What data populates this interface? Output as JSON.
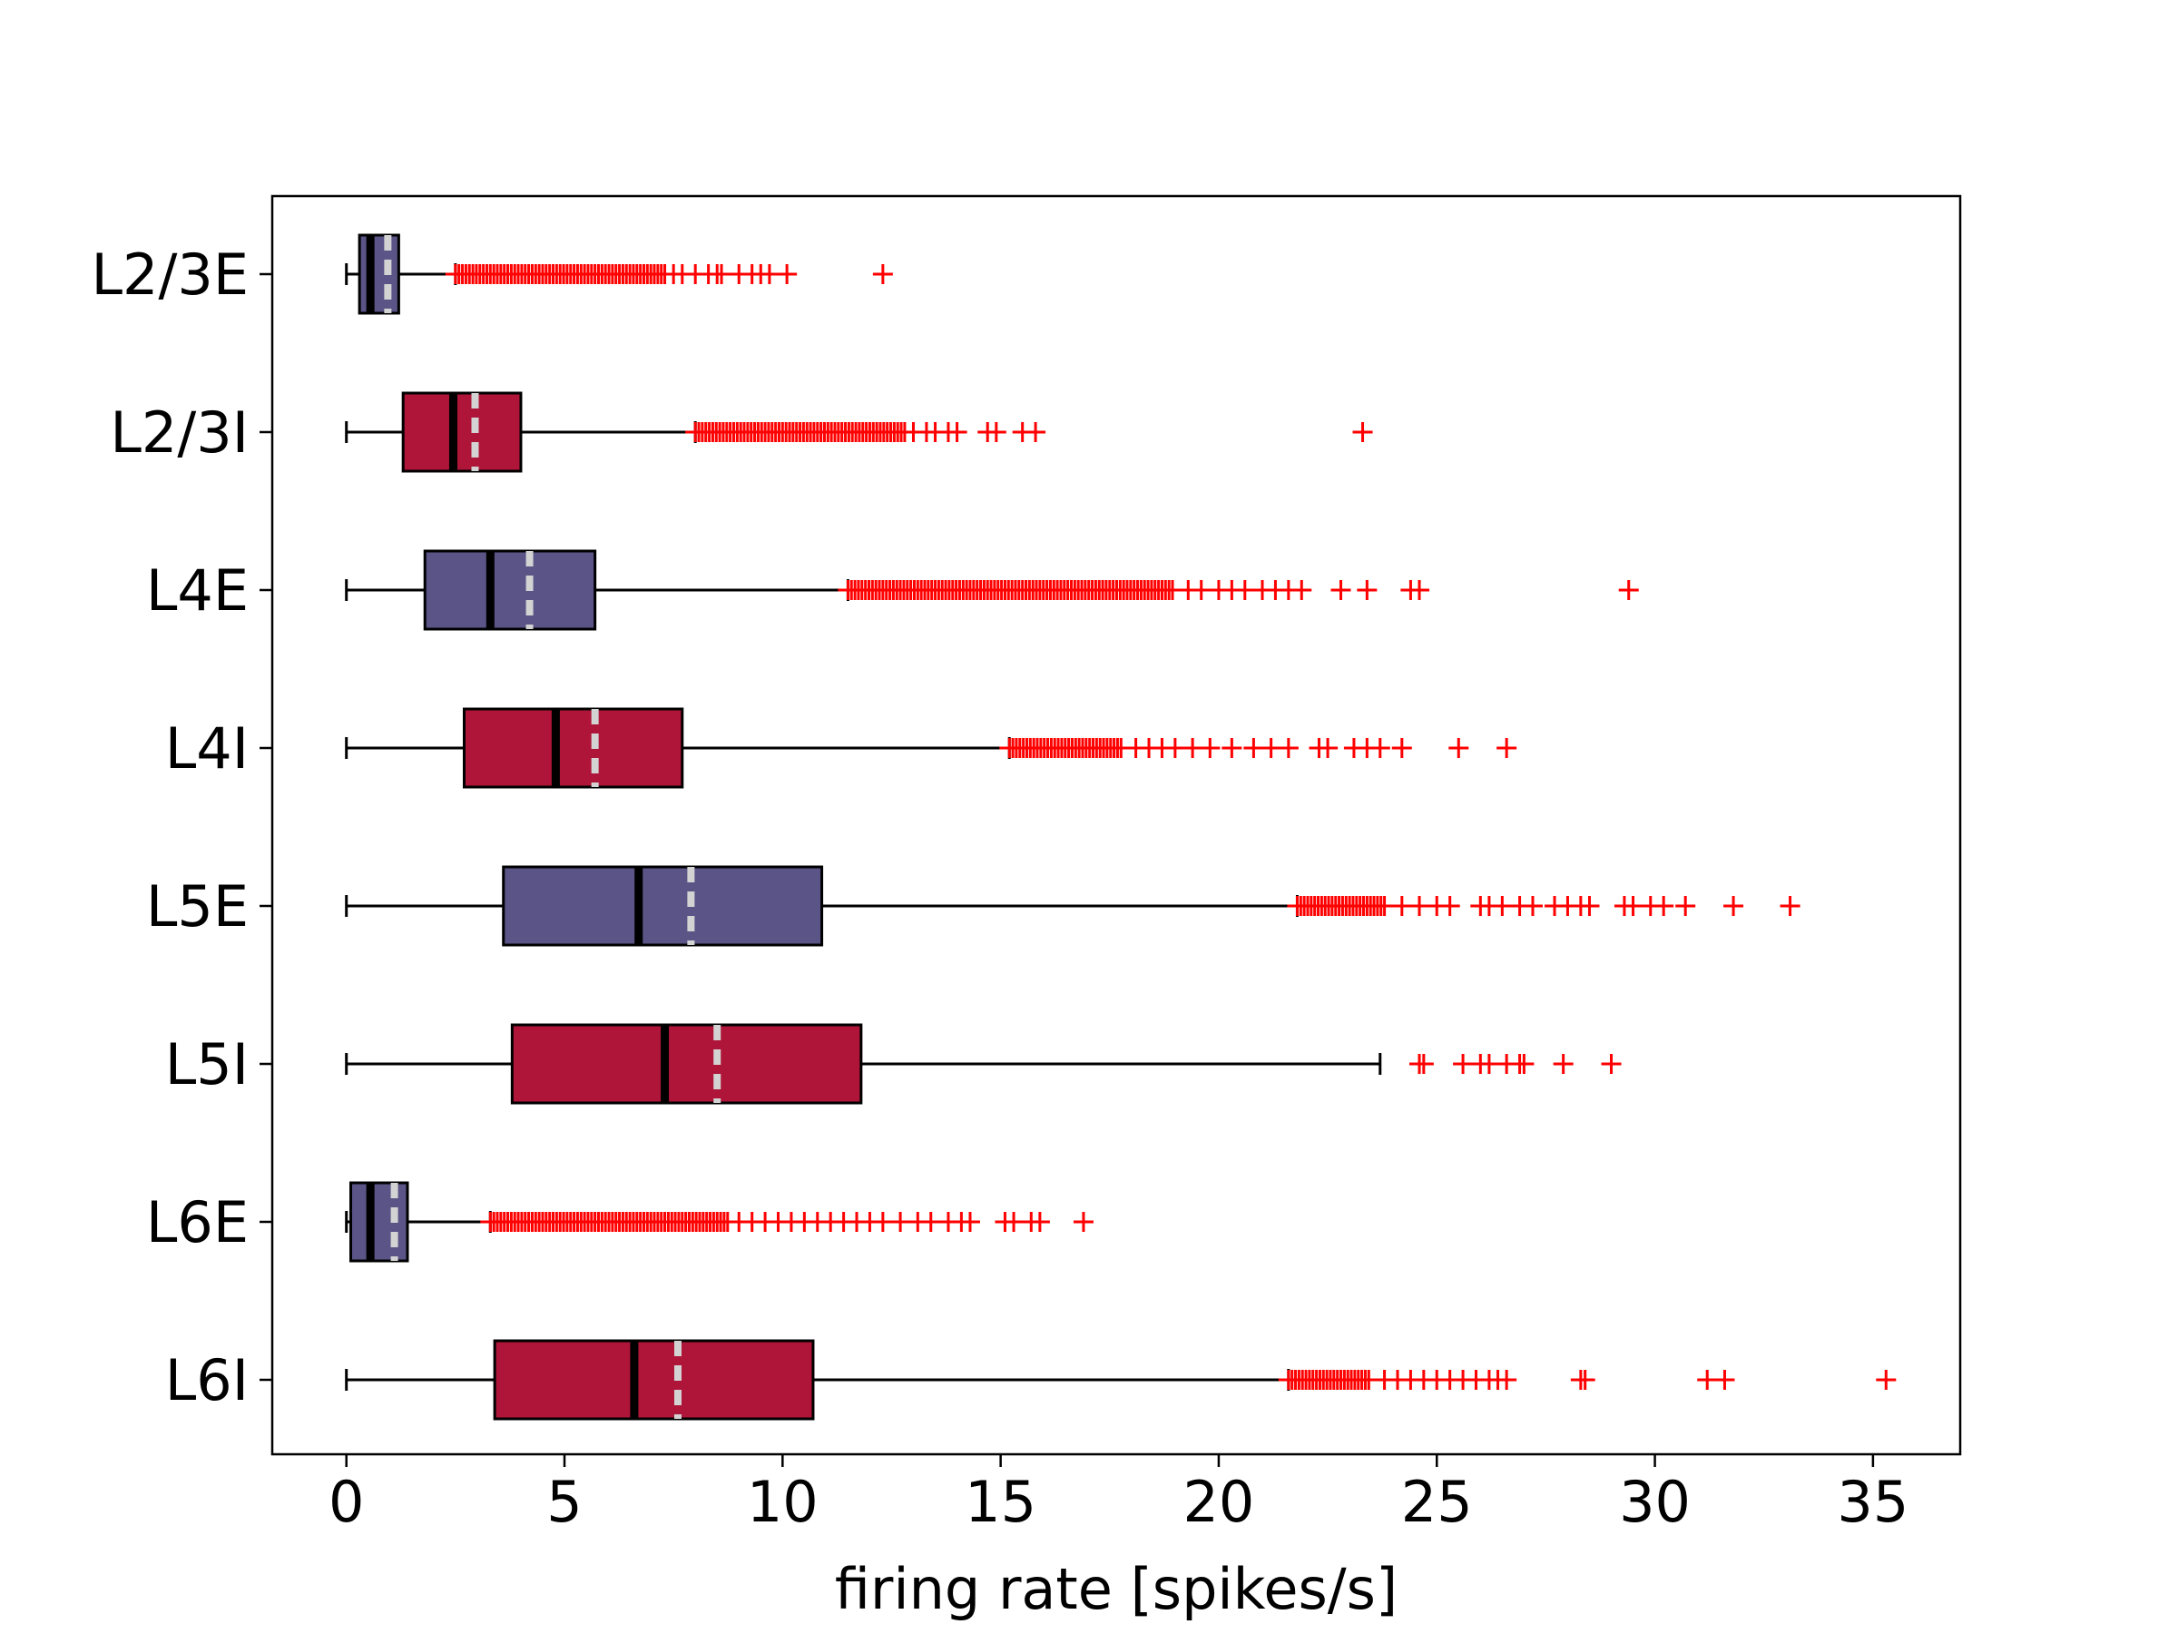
{
  "chart_data": {
    "type": "box",
    "orientation": "horizontal",
    "xlabel": "firing rate [spikes/s]",
    "xlim": [
      -1.7,
      37
    ],
    "xticks": [
      0,
      5,
      10,
      15,
      20,
      25,
      30,
      35
    ],
    "grid": false,
    "legend": "none",
    "colors": {
      "excitatory": "#5a5487",
      "inhibitory": "#af1539",
      "median": "#000000",
      "mean": "#d3d3d3",
      "outlier": "#ff0000"
    },
    "groups": [
      {
        "label": "L2/3E",
        "kind": "excitatory",
        "whisker_low": 0,
        "q1": 0.3,
        "median": 0.55,
        "mean": 0.95,
        "q3": 1.2,
        "whisker_high": 2.5,
        "outliers_dense": [
          2.5,
          7.3
        ],
        "outliers": [
          7.5,
          7.7,
          8.0,
          8.3,
          8.5,
          8.6,
          9.0,
          9.3,
          9.5,
          9.7,
          10.1,
          12.3
        ]
      },
      {
        "label": "L2/3I",
        "kind": "inhibitory",
        "whisker_low": 0,
        "q1": 1.3,
        "median": 2.45,
        "mean": 2.95,
        "q3": 4.0,
        "whisker_high": 8.0,
        "outliers_dense": [
          8.0,
          12.8
        ],
        "outliers": [
          13.0,
          13.3,
          13.5,
          13.8,
          14.0,
          14.7,
          14.9,
          15.5,
          15.8,
          23.3
        ]
      },
      {
        "label": "L4E",
        "kind": "excitatory",
        "whisker_low": 0,
        "q1": 1.8,
        "median": 3.3,
        "mean": 4.2,
        "q3": 5.7,
        "whisker_high": 11.5,
        "outliers_dense": [
          11.5,
          19.0
        ],
        "outliers": [
          19.3,
          19.6,
          20.0,
          20.3,
          20.6,
          21.0,
          21.3,
          21.6,
          21.9,
          22.8,
          23.4,
          24.4,
          24.6,
          29.4
        ]
      },
      {
        "label": "L4I",
        "kind": "inhibitory",
        "whisker_low": 0,
        "q1": 2.7,
        "median": 4.8,
        "mean": 5.7,
        "q3": 7.7,
        "whisker_high": 15.2,
        "outliers_dense": [
          15.2,
          17.8
        ],
        "outliers": [
          18.1,
          18.4,
          18.7,
          19.0,
          19.4,
          19.8,
          20.3,
          20.8,
          21.2,
          21.6,
          22.3,
          22.5,
          23.1,
          23.4,
          23.7,
          24.2,
          25.5,
          26.6
        ]
      },
      {
        "label": "L5E",
        "kind": "excitatory",
        "whisker_low": 0,
        "q1": 3.6,
        "median": 6.7,
        "mean": 7.9,
        "q3": 10.9,
        "whisker_high": 21.8,
        "outliers_dense": [
          21.8,
          23.8
        ],
        "outliers": [
          24.2,
          24.6,
          25.0,
          25.3,
          26.0,
          26.2,
          26.5,
          26.9,
          27.2,
          27.7,
          28.0,
          28.3,
          28.5,
          29.3,
          29.5,
          29.9,
          30.2,
          30.7,
          31.8,
          33.1
        ]
      },
      {
        "label": "L5I",
        "kind": "inhibitory",
        "whisker_low": 0,
        "q1": 3.8,
        "median": 7.3,
        "mean": 8.5,
        "q3": 11.8,
        "whisker_high": 23.7,
        "outliers_dense": [],
        "outliers": [
          24.6,
          24.7,
          25.6,
          26.0,
          26.2,
          26.6,
          26.9,
          27.0,
          27.9,
          29.0
        ]
      },
      {
        "label": "L6E",
        "kind": "excitatory",
        "whisker_low": 0,
        "q1": 0.1,
        "median": 0.55,
        "mean": 1.1,
        "q3": 1.4,
        "whisker_high": 3.3,
        "outliers_dense": [
          3.3,
          8.8
        ],
        "outliers": [
          9.0,
          9.3,
          9.6,
          9.9,
          10.2,
          10.5,
          10.8,
          11.1,
          11.4,
          11.7,
          12.0,
          12.3,
          12.7,
          13.1,
          13.4,
          13.8,
          14.1,
          14.3,
          15.1,
          15.3,
          15.7,
          15.9,
          16.9
        ]
      },
      {
        "label": "L6I",
        "kind": "inhibitory",
        "whisker_low": 0,
        "q1": 3.4,
        "median": 6.6,
        "mean": 7.6,
        "q3": 10.7,
        "whisker_high": 21.6,
        "outliers_dense": [
          21.6,
          23.5
        ],
        "outliers": [
          23.8,
          24.1,
          24.4,
          24.7,
          25.0,
          25.3,
          25.6,
          25.9,
          26.2,
          26.4,
          26.6,
          28.3,
          28.4,
          31.2,
          31.6,
          35.3
        ]
      }
    ]
  }
}
